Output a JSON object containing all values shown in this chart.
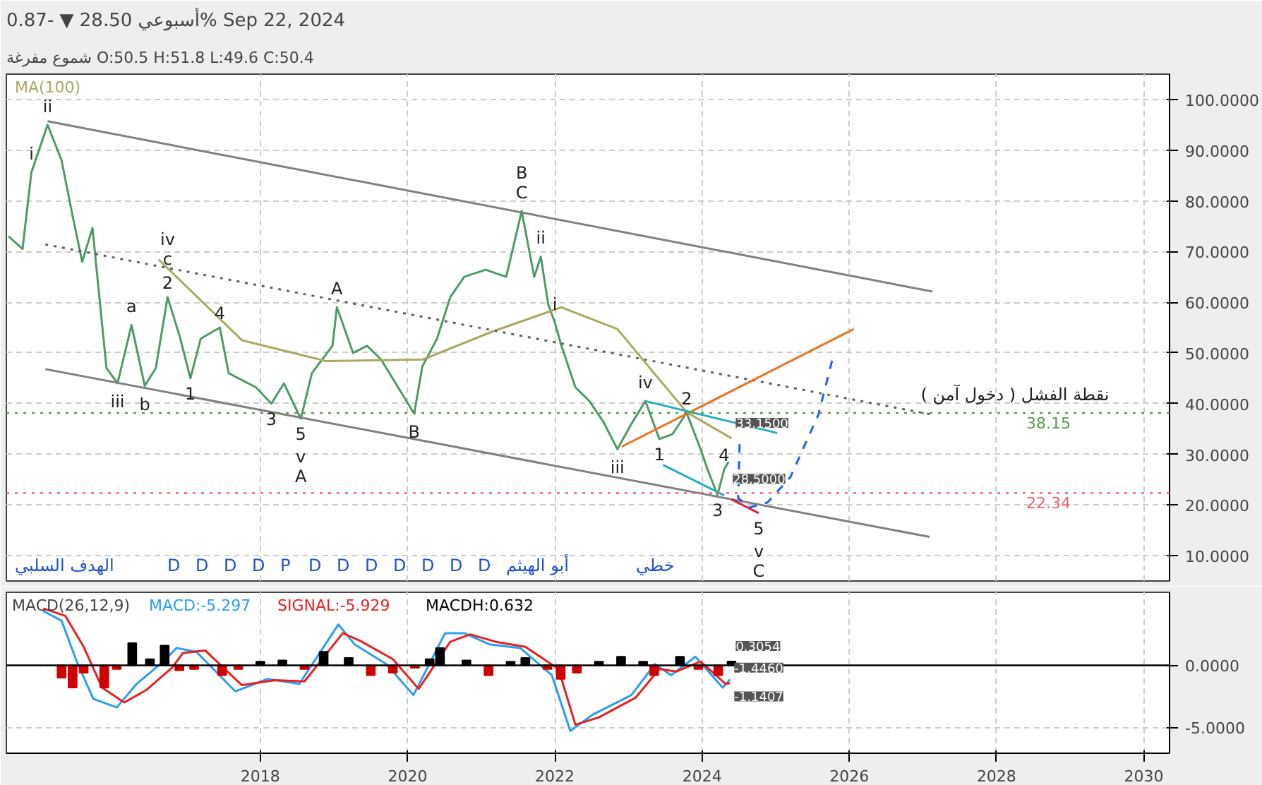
{
  "chart_data": [
    {
      "type": "line",
      "title": "أسبوعي   28.50 ▼  -0.87%   Sep 22, 2024",
      "subtitle": "شموع مفرغة   O:50.5  H:51.8  L:49.6  C:50.4",
      "xlim": [
        2014.55,
        2030.35
      ],
      "ylim": [
        5,
        105
      ],
      "xticks": [
        2018,
        2020,
        2022,
        2024,
        2026,
        2028,
        2030
      ],
      "yticks": [
        {
          "value": 10,
          "label": "10.0000"
        },
        {
          "value": 20,
          "label": "20.0000"
        },
        {
          "value": 30,
          "label": "30.0000"
        },
        {
          "value": 40,
          "label": "40.0000"
        },
        {
          "value": 50,
          "label": "50.0000"
        },
        {
          "value": 60,
          "label": "60.0000"
        },
        {
          "value": 70,
          "label": "70.0000"
        },
        {
          "value": 80,
          "label": "80.0000"
        },
        {
          "value": 90,
          "label": "90.0000"
        },
        {
          "value": 100,
          "label": "100.0000"
        }
      ],
      "tick_labels": "y",
      "grid": true,
      "series": [
        {
          "color": "#4f9a64",
          "x": [
            2014.58,
            2014.77,
            2014.89,
            2015.11,
            2015.3,
            2015.45,
            2015.58,
            2015.72,
            2015.91,
            2016.06,
            2016.25,
            2016.43,
            2016.58,
            2016.74,
            2016.91,
            2017.05,
            2017.19,
            2017.45,
            2017.57,
            2017.94,
            2018.15,
            2018.32,
            2018.55,
            2018.7,
            2018.98,
            2019.04,
            2019.26,
            2019.45,
            2019.64,
            2020.09,
            2020.2,
            2020.4,
            2020.58,
            2020.77,
            2021.06,
            2021.34,
            2021.55,
            2021.72,
            2021.81,
            2021.91,
            2022.0,
            2022.09,
            2022.28,
            2022.47,
            2022.66,
            2022.85,
            2023.04,
            2023.23,
            2023.42,
            2023.6,
            2023.79,
            2023.98,
            2024.08,
            2024.21,
            2024.3,
            2024.36
          ],
          "values": [
            73,
            70.5,
            85.6,
            95,
            88,
            77,
            68,
            74.6,
            47,
            44,
            55.5,
            43.5,
            47,
            61,
            53,
            45,
            52.8,
            55,
            46,
            43.2,
            40,
            44,
            37,
            46,
            51.4,
            59,
            50,
            51.4,
            48.7,
            38,
            47.3,
            52.8,
            61,
            65,
            66.4,
            65,
            78,
            65,
            69,
            59.6,
            56,
            51.4,
            43.2,
            40.5,
            36.4,
            31,
            36,
            40.5,
            33,
            34,
            38.2,
            31,
            26.8,
            22,
            27,
            28.5
          ]
        },
        {
          "name": "MA(100)",
          "color": "#a8a860",
          "x": [
            2016.62,
            2017.75,
            2018.89,
            2020.21,
            2021.15,
            2022.09,
            2022.85,
            2023.79,
            2024.4
          ],
          "values": [
            68.4,
            52.5,
            48.4,
            48.7,
            54.2,
            59,
            54.7,
            38.3,
            33.15
          ]
        },
        {
          "color": "#808080",
          "x": [
            2015.11,
            2027.13
          ],
          "values": [
            95.7,
            62.1
          ]
        },
        {
          "color": "#808080",
          "x": [
            2015.08,
            2027.09
          ],
          "values": [
            46.8,
            13.7
          ]
        },
        {
          "color": "#606060",
          "line_style": "dotted",
          "x": [
            2015.08,
            2027.13
          ],
          "values": [
            71.4,
            37.8
          ]
        },
        {
          "color": "#f07020",
          "x": [
            2022.91,
            2026.06
          ],
          "values": [
            31.5,
            54.7
          ]
        },
        {
          "color": "#20b0c0",
          "x": [
            2023.23,
            2025.02
          ],
          "values": [
            40.5,
            34.2
          ]
        },
        {
          "color": "#20b0c0",
          "x": [
            2023.47,
            2024.3
          ],
          "values": [
            27.9,
            21.9
          ]
        },
        {
          "color": "#2060f0",
          "line_style": "dashed",
          "x": [
            2024.51,
            2024.49,
            2024.64,
            2024.89,
            2025.2,
            2025.58,
            2025.77
          ],
          "values": [
            32,
            21.4,
            19.5,
            20.5,
            25.5,
            37.8,
            48.7
          ]
        },
        {
          "color": "#e02040",
          "x": [
            2024.4,
            2024.77
          ],
          "values": [
            21.1,
            18.4
          ]
        }
      ],
      "ref_lines": [
        {
          "axis": "y",
          "value": 38.15,
          "label": "38.15",
          "color": "#5a9a50",
          "line_style": "dotted"
        },
        {
          "axis": "y",
          "value": 22.34,
          "label": "22.34",
          "color": "#f06070",
          "line_style": "dotted"
        }
      ],
      "annotations": [
        {
          "text": "i",
          "x": 2014.89,
          "y": 85.6
        },
        {
          "text": "ii",
          "x": 2015.11,
          "y": 95
        },
        {
          "text": "iii",
          "x": 2016.06,
          "y": 44
        },
        {
          "text": "a",
          "x": 2016.25,
          "y": 55.5
        },
        {
          "text": "b",
          "x": 2016.43,
          "y": 43.5
        },
        {
          "text": "2",
          "x": 2016.74,
          "y": 61
        },
        {
          "text": "c",
          "x": 2016.74,
          "y": 61
        },
        {
          "text": "iv",
          "x": 2016.74,
          "y": 61
        },
        {
          "text": "1",
          "x": 2017.05,
          "y": 45
        },
        {
          "text": "4",
          "x": 2017.45,
          "y": 55
        },
        {
          "text": "3",
          "x": 2018.15,
          "y": 40
        },
        {
          "text": "5",
          "x": 2018.55,
          "y": 37
        },
        {
          "text": "v",
          "x": 2018.55,
          "y": 37
        },
        {
          "text": "A",
          "x": 2018.55,
          "y": 37
        },
        {
          "text": "A",
          "x": 2019.04,
          "y": 59
        },
        {
          "text": "B",
          "x": 2020.09,
          "y": 38
        },
        {
          "text": "C",
          "x": 2021.55,
          "y": 78
        },
        {
          "text": "B",
          "x": 2021.55,
          "y": 78
        },
        {
          "text": "ii",
          "x": 2021.81,
          "y": 69
        },
        {
          "text": "i",
          "x": 2022.0,
          "y": 56
        },
        {
          "text": "iii",
          "x": 2022.85,
          "y": 31
        },
        {
          "text": "iv",
          "x": 2023.23,
          "y": 40.5
        },
        {
          "text": "1",
          "x": 2023.42,
          "y": 33
        },
        {
          "text": "2",
          "x": 2023.79,
          "y": 38.2
        },
        {
          "text": "3",
          "x": 2024.21,
          "y": 22
        },
        {
          "text": "4",
          "x": 2024.3,
          "y": 27
        },
        {
          "text": "5",
          "x": 2024.77,
          "y": 18.4
        },
        {
          "text": "v",
          "x": 2024.77,
          "y": 18.4
        },
        {
          "text": "C",
          "x": 2024.77,
          "y": 18.4
        },
        {
          "text": "نقطة الفشل ( دخول آمن )",
          "x": 2028.25,
          "y": 38.15
        },
        {
          "text": "33.1500",
          "x": 2024.4,
          "y": 33.15
        },
        {
          "text": "28.5000",
          "x": 2024.36,
          "y": 28.5
        },
        "الهدف السلبي",
        "D",
        "D",
        "D",
        "D",
        "P",
        "D",
        "D",
        "D",
        "D",
        "D",
        "D",
        "D",
        "أبو الهيثم",
        "خطي"
      ]
    },
    {
      "type": "line",
      "title": "MACD(26,12,9)",
      "xlim": [
        2014.55,
        2030.35
      ],
      "ylim": [
        -7.1,
        5.9
      ],
      "xticks": [
        2018,
        2020,
        2022,
        2024,
        2026,
        2028,
        2030
      ],
      "yticks": [
        {
          "value": 0,
          "label": "0.0000"
        },
        {
          "value": -5,
          "label": "-5.0000"
        }
      ],
      "grid": true,
      "series": [
        {
          "name": "MACD:-5.297",
          "color": "#2a9df4",
          "x": [
            2015.05,
            2015.3,
            2015.5,
            2015.73,
            2016.05,
            2016.32,
            2016.7,
            2016.86,
            2017.13,
            2017.66,
            2018.1,
            2018.53,
            2019.06,
            2019.28,
            2019.71,
            2020.08,
            2020.51,
            2020.77,
            2021.11,
            2021.53,
            2021.96,
            2022.21,
            2022.51,
            2023.04,
            2023.36,
            2023.58,
            2023.91,
            2024.28,
            2024.38
          ],
          "values": [
            4.4,
            3.6,
            0.4,
            -2.7,
            -3.4,
            -1.5,
            0.4,
            1.4,
            1.1,
            -2.1,
            -1.1,
            -1.5,
            3.3,
            1.7,
            0.1,
            -2.4,
            2.6,
            2.6,
            1.7,
            1.4,
            -0.8,
            -5.3,
            -4.0,
            -2.4,
            0.1,
            -0.8,
            0.7,
            -1.8,
            -1.1407
          ]
        },
        {
          "name": "SIGNAL:-5.929",
          "color": "#e82020",
          "x": [
            2015.05,
            2015.35,
            2015.6,
            2015.85,
            2016.15,
            2016.45,
            2016.8,
            2016.95,
            2017.25,
            2017.75,
            2018.2,
            2018.6,
            2019.12,
            2019.35,
            2019.8,
            2020.15,
            2020.58,
            2020.85,
            2021.2,
            2021.6,
            2022.05,
            2022.28,
            2022.6,
            2023.1,
            2023.42,
            2023.65,
            2023.98,
            2024.32,
            2024.38
          ],
          "values": [
            4.6,
            4.0,
            1.5,
            -1.8,
            -3.0,
            -2.0,
            -0.2,
            1.0,
            1.2,
            -1.6,
            -1.2,
            -1.3,
            2.6,
            2.0,
            0.5,
            -1.9,
            1.9,
            2.5,
            1.9,
            1.5,
            -0.3,
            -4.8,
            -4.2,
            -2.6,
            -0.3,
            -0.5,
            0.3,
            -1.5,
            -1.446
          ]
        },
        {
          "name": "MACDH:0.632",
          "type": "bar",
          "color": "#000000",
          "x": [
            2015.3,
            2015.45,
            2015.6,
            2015.88,
            2016.05,
            2016.26,
            2016.5,
            2016.7,
            2016.9,
            2017.1,
            2017.48,
            2017.7,
            2018.0,
            2018.3,
            2018.6,
            2018.86,
            2019.2,
            2019.5,
            2019.8,
            2020.1,
            2020.3,
            2020.44,
            2020.8,
            2021.1,
            2021.4,
            2021.6,
            2021.9,
            2022.08,
            2022.3,
            2022.6,
            2022.9,
            2023.2,
            2023.35,
            2023.7,
            2023.95,
            2024.22,
            2024.4
          ],
          "values": [
            -1.0,
            -1.8,
            -0.6,
            -1.8,
            -0.3,
            1.8,
            0.5,
            1.6,
            -0.4,
            -0.3,
            -0.8,
            -0.3,
            0.3,
            0.4,
            -0.3,
            1.1,
            0.6,
            -0.8,
            -0.6,
            -0.2,
            0.5,
            1.4,
            0.4,
            -0.8,
            0.3,
            0.6,
            -0.3,
            -1.1,
            -0.6,
            0.3,
            0.7,
            0.3,
            -0.8,
            0.7,
            -0.3,
            -0.8,
            0.3054
          ],
          "colors": [
            "#d00000",
            "#d00000",
            "#d00000",
            "#d00000",
            "#d00000",
            "#000000",
            "#000000",
            "#000000",
            "#d00000",
            "#d00000",
            "#d00000",
            "#d00000",
            "#000000",
            "#000000",
            "#d00000",
            "#000000",
            "#000000",
            "#d00000",
            "#d00000",
            "#d00000",
            "#000000",
            "#000000",
            "#000000",
            "#d00000",
            "#000000",
            "#000000",
            "#d00000",
            "#d00000",
            "#d00000",
            "#000000",
            "#000000",
            "#000000",
            "#d00000",
            "#000000",
            "#d00000",
            "#d00000",
            "#000000"
          ]
        }
      ],
      "ref_lines": [
        {
          "axis": "y",
          "value": 0,
          "color": "#000000",
          "line_style": "solid"
        }
      ],
      "annotations": [
        {
          "text": "0.3054",
          "x": 2024.4,
          "y": 0.3054
        },
        {
          "text": "-1.1407",
          "x": 2024.38,
          "y": -1.1407
        },
        {
          "text": "-1.4460",
          "x": 2024.38,
          "y": -1.446
        }
      ]
    }
  ]
}
